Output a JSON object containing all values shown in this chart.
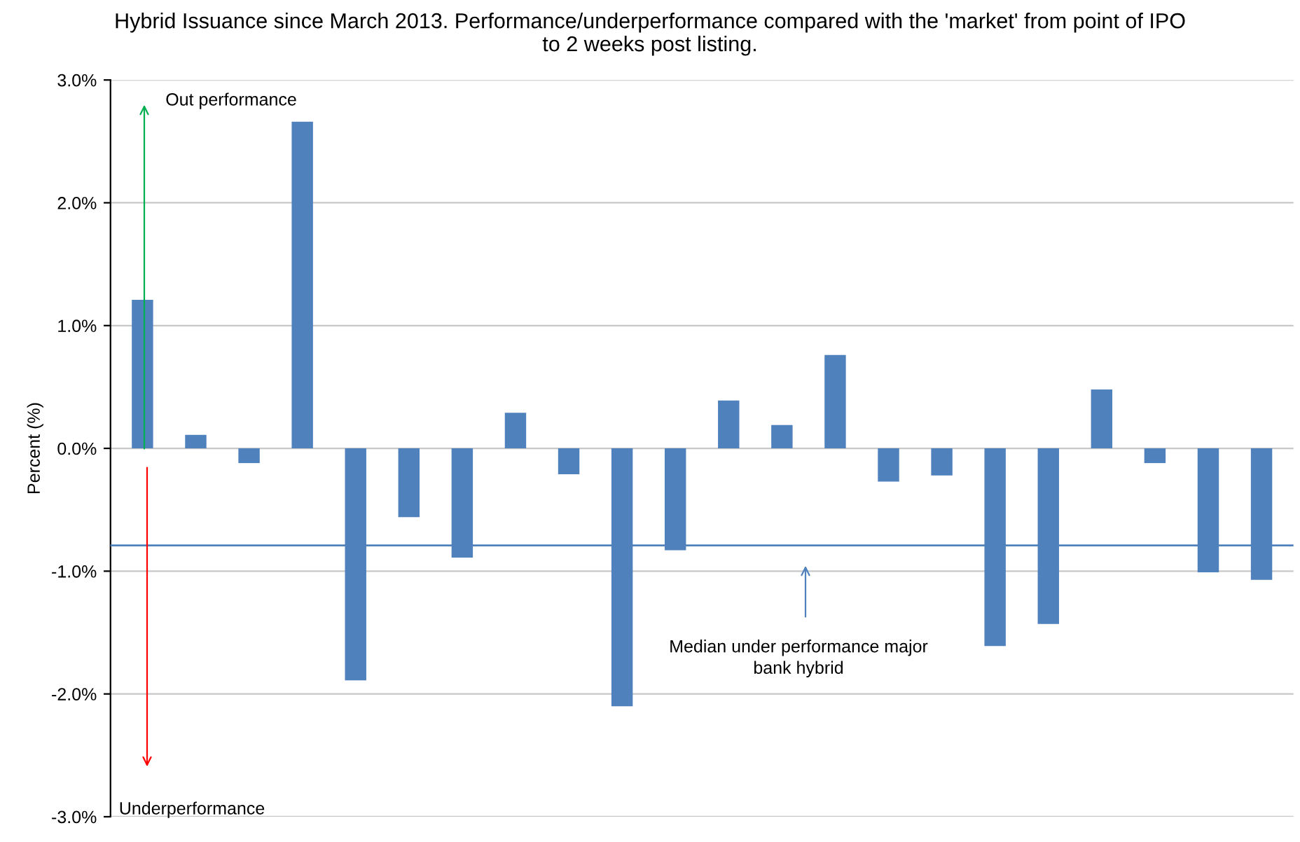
{
  "chart_data": {
    "type": "bar",
    "title": "Hybrid Issuance since March 2013. Performance/underperformance compared with the 'market' from point of IPO\nto 2 weeks post listing.",
    "ylabel": "Percent (%)",
    "categories": [
      null,
      null,
      null,
      null,
      null,
      null,
      null,
      null,
      null,
      null,
      null,
      null,
      null,
      null,
      null,
      null,
      null,
      null,
      null,
      null,
      null,
      null
    ],
    "values": [
      1.21,
      0.11,
      -0.12,
      2.66,
      -1.89,
      -0.56,
      -0.89,
      0.29,
      -0.21,
      -2.1,
      -0.83,
      0.39,
      0.19,
      0.76,
      -0.27,
      -0.22,
      -1.61,
      -1.43,
      0.48,
      -0.12,
      -1.01,
      -1.07
    ],
    "color": "#4f81bd",
    "ylim": [
      -3.0,
      3.0
    ],
    "yticks": [
      {
        "value": -3.0,
        "label": "-3.0%"
      },
      {
        "value": -2.0,
        "label": "-2.0%"
      },
      {
        "value": -1.0,
        "label": "-1.0%"
      },
      {
        "value": 0.0,
        "label": "0.0%"
      },
      {
        "value": 1.0,
        "label": "1.0%"
      },
      {
        "value": 2.0,
        "label": "2.0%"
      },
      {
        "value": 3.0,
        "label": "3.0%"
      }
    ],
    "grid": "y",
    "ref_lines": [
      {
        "axis": "y",
        "value": -0.79,
        "color": "#4f81bd"
      }
    ],
    "annotations": [
      "Out performance",
      "Underperformance",
      "Median under performance major bank hybrid"
    ]
  }
}
